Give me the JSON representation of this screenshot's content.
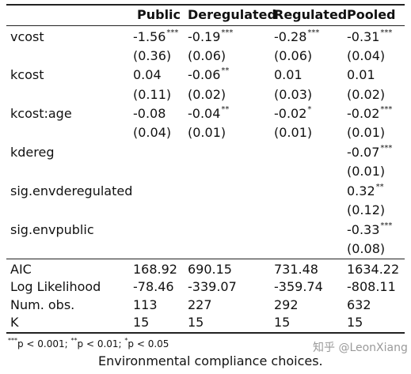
{
  "columns": [
    "Public",
    "Deregulated",
    "Regulated",
    "Pooled"
  ],
  "rows": {
    "vcost": {
      "label": "vcost",
      "coef": [
        {
          "v": "-1.56",
          "sig": "***"
        },
        {
          "v": "-0.19",
          "sig": "***"
        },
        {
          "v": "-0.28",
          "sig": "***"
        },
        {
          "v": "-0.31",
          "sig": "***"
        }
      ],
      "se": [
        "(0.36)",
        "(0.06)",
        "(0.06)",
        "(0.04)"
      ]
    },
    "kcost": {
      "label": "kcost",
      "coef": [
        {
          "v": "0.04",
          "sig": ""
        },
        {
          "v": "-0.06",
          "sig": "**"
        },
        {
          "v": "0.01",
          "sig": ""
        },
        {
          "v": "0.01",
          "sig": ""
        }
      ],
      "se": [
        "(0.11)",
        "(0.02)",
        "(0.03)",
        "(0.02)"
      ]
    },
    "kcost_age": {
      "label": "kcost:age",
      "coef": [
        {
          "v": "-0.08",
          "sig": ""
        },
        {
          "v": "-0.04",
          "sig": "**"
        },
        {
          "v": "-0.02",
          "sig": "*"
        },
        {
          "v": "-0.02",
          "sig": "***"
        }
      ],
      "se": [
        "(0.04)",
        "(0.01)",
        "(0.01)",
        "(0.01)"
      ]
    },
    "kdereg": {
      "label": "kdereg",
      "coef": {
        "v": "-0.07",
        "sig": "***"
      },
      "se": "(0.01)"
    },
    "sig_envderegulated": {
      "label": "sig.envderegulated",
      "coef": {
        "v": "0.32",
        "sig": "**"
      },
      "se": "(0.12)"
    },
    "sig_envpublic": {
      "label": "sig.envpublic",
      "coef": {
        "v": "-0.33",
        "sig": "***"
      },
      "se": "(0.08)"
    }
  },
  "stats": {
    "aic": {
      "label": "AIC",
      "values": [
        "168.92",
        "690.15",
        "731.48",
        "1634.22"
      ]
    },
    "loglik": {
      "label": "Log Likelihood",
      "values": [
        "-78.46",
        "-339.07",
        "-359.74",
        "-808.11"
      ]
    },
    "nobs": {
      "label": "Num. obs.",
      "values": [
        "113",
        "227",
        "292",
        "632"
      ]
    },
    "k": {
      "label": "K",
      "values": [
        "15",
        "15",
        "15",
        "15"
      ]
    }
  },
  "footnote": {
    "s3": "***",
    "t3": "p < 0.001; ",
    "s2": "**",
    "t2": "p < 0.01; ",
    "s1": "*",
    "t1": "p < 0.05"
  },
  "caption": "Environmental compliance choices.",
  "watermark": "知乎 @LeonXiang"
}
